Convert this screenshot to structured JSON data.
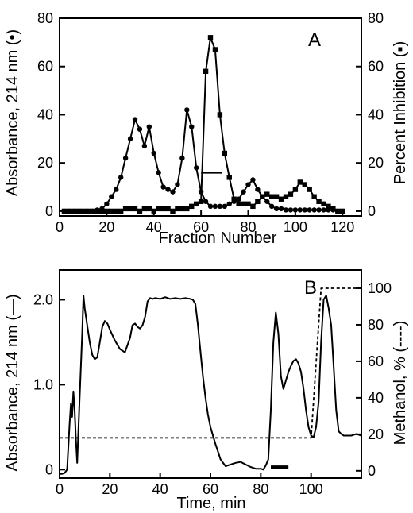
{
  "chart_data": [
    {
      "panel": "A",
      "type": "line",
      "xlabel": "Fraction Number",
      "ylabel": "Absorbance, 214 nm (•)",
      "y2label": "Percent Inhibition (▪)",
      "xlim": [
        0,
        128
      ],
      "ylim": [
        -2,
        80
      ],
      "y2lim": [
        -2,
        80
      ],
      "xticks": [
        0,
        20,
        40,
        60,
        80,
        100,
        120
      ],
      "yticks": [
        0,
        20,
        40,
        60,
        80
      ],
      "y2ticks": [
        0,
        20,
        40,
        60,
        80
      ],
      "series": [
        {
          "marker": "circle",
          "axis": "left",
          "x": [
            2,
            4,
            6,
            8,
            10,
            12,
            14,
            16,
            18,
            20,
            22,
            24,
            26,
            28,
            30,
            32,
            34,
            36,
            38,
            40,
            42,
            44,
            46,
            48,
            50,
            52,
            54,
            56,
            58,
            60,
            62,
            64,
            66,
            68,
            70,
            72,
            74,
            76,
            78,
            80,
            82,
            84,
            86,
            88,
            90,
            92,
            94,
            96,
            98,
            100,
            102,
            104,
            106,
            108,
            110,
            112,
            114,
            116,
            118,
            120
          ],
          "values": [
            0,
            0,
            0,
            0,
            0,
            0,
            0,
            0.5,
            1,
            3,
            6,
            9,
            14,
            22,
            30,
            38,
            34,
            27,
            35,
            24,
            16,
            10,
            9,
            8,
            11,
            22,
            42,
            35,
            18,
            8,
            4,
            2,
            2,
            2,
            2,
            3,
            4,
            5,
            8,
            11,
            13,
            9,
            6,
            4,
            2,
            1,
            1,
            0.5,
            0.5,
            0.5,
            0.5,
            0.5,
            0.5,
            0.5,
            0.5,
            0.5,
            0.5,
            0.5,
            0,
            0
          ]
        },
        {
          "marker": "square",
          "axis": "right",
          "x": [
            2,
            4,
            6,
            8,
            10,
            12,
            14,
            16,
            18,
            20,
            22,
            24,
            26,
            28,
            30,
            32,
            34,
            36,
            38,
            40,
            42,
            44,
            46,
            48,
            50,
            52,
            54,
            56,
            58,
            60,
            62,
            64,
            66,
            68,
            70,
            72,
            74,
            76,
            78,
            80,
            82,
            84,
            86,
            88,
            90,
            92,
            94,
            96,
            98,
            100,
            102,
            104,
            106,
            108,
            110,
            112,
            114,
            116,
            118,
            120
          ],
          "values": [
            0,
            0,
            0,
            0,
            0,
            0,
            0,
            0,
            0,
            0,
            0,
            0,
            0,
            1,
            1,
            1,
            0,
            1,
            1,
            0,
            1,
            1,
            1,
            0,
            1,
            1,
            1,
            2,
            3,
            4,
            58,
            72,
            67,
            40,
            24,
            14,
            5,
            3,
            3,
            3,
            2,
            4,
            6,
            7,
            6,
            6,
            5,
            6,
            7,
            9,
            12,
            11,
            9,
            6,
            4,
            3,
            2,
            1,
            0,
            0
          ]
        }
      ],
      "bar_annotation": {
        "x": [
          60,
          69
        ],
        "y": 16
      }
    },
    {
      "panel": "B",
      "type": "line",
      "xlabel": "Time, min",
      "ylabel": "Absorbance, 214 nm (—)",
      "y2label": "Methanol, % (----)",
      "xlim": [
        0,
        120
      ],
      "ylim": [
        -0.1,
        2.35
      ],
      "y2lim": [
        -4,
        110
      ],
      "xticks": [
        0,
        20,
        40,
        60,
        80,
        100
      ],
      "yticks": [
        0,
        1.0,
        2.0
      ],
      "yticklabels": [
        "0",
        "1.0",
        "2.0"
      ],
      "y2ticks": [
        0,
        20,
        40,
        60,
        80,
        100
      ],
      "series": [
        {
          "style": "solid",
          "axis": "left",
          "x": [
            0,
            1,
            2,
            3,
            4,
            4.5,
            5,
            5.5,
            6,
            6.5,
            7,
            8,
            9,
            9.5,
            10,
            11,
            12,
            13,
            14,
            15,
            16,
            17,
            18,
            19,
            20,
            22,
            24,
            26,
            28,
            29,
            30,
            31,
            32,
            33,
            34,
            35,
            36,
            37,
            38,
            40,
            42,
            44,
            46,
            48,
            50,
            52,
            53,
            54,
            55,
            56,
            57,
            58,
            59,
            60,
            62,
            64,
            66,
            68,
            70,
            72,
            74,
            76,
            78,
            80,
            81,
            82,
            83,
            84,
            85,
            86,
            87,
            88,
            89,
            90,
            91,
            92,
            93,
            94,
            95,
            96,
            97,
            98,
            99,
            100,
            101,
            102,
            103,
            104,
            105,
            106,
            107,
            108,
            109,
            110,
            111,
            112,
            113,
            114,
            116,
            118,
            120
          ],
          "values": [
            -0.05,
            -0.05,
            -0.04,
            0.0,
            0.55,
            0.78,
            0.62,
            0.92,
            0.7,
            0.35,
            0.08,
            0.85,
            1.6,
            2.05,
            1.9,
            1.7,
            1.5,
            1.35,
            1.3,
            1.32,
            1.5,
            1.68,
            1.75,
            1.72,
            1.65,
            1.52,
            1.42,
            1.38,
            1.55,
            1.7,
            1.72,
            1.68,
            1.66,
            1.7,
            1.8,
            1.98,
            2.02,
            2.01,
            2.02,
            2.01,
            2.03,
            2.01,
            2.02,
            2.01,
            2.02,
            2.01,
            2.0,
            1.95,
            1.7,
            1.4,
            1.1,
            0.85,
            0.65,
            0.5,
            0.3,
            0.12,
            0.04,
            0.06,
            0.08,
            0.09,
            0.06,
            0.03,
            0.01,
            0.01,
            0.0,
            0.05,
            0.12,
            0.7,
            1.5,
            1.85,
            1.6,
            1.1,
            0.95,
            1.05,
            1.15,
            1.22,
            1.28,
            1.3,
            1.25,
            1.15,
            0.95,
            0.7,
            0.5,
            0.4,
            0.38,
            0.5,
            0.8,
            1.5,
            2.0,
            2.05,
            1.9,
            1.7,
            1.2,
            0.7,
            0.45,
            0.42,
            0.4,
            0.4,
            0.4,
            0.42,
            0.4
          ]
        },
        {
          "style": "dashed",
          "axis": "right",
          "x": [
            0,
            2,
            4,
            99,
            100,
            104,
            105,
            120
          ],
          "values": [
            18,
            18,
            18,
            18,
            18,
            100,
            100,
            100
          ]
        }
      ],
      "bar_annotation": {
        "x": [
          84,
          91
        ],
        "y": 0.03
      }
    }
  ]
}
